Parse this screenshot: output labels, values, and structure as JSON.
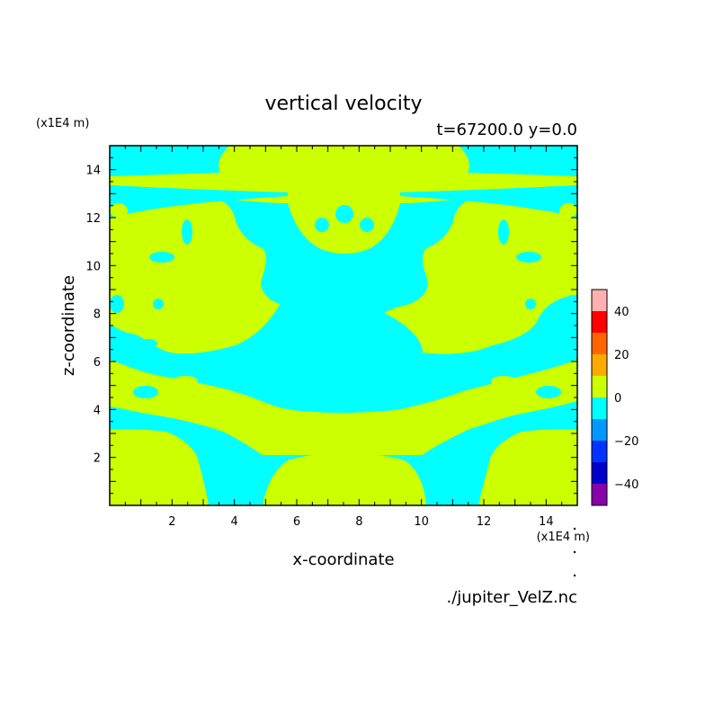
{
  "chart_data": {
    "type": "heatmap",
    "title": "vertical velocity",
    "subtitle": "t=67200.0 y=0.0",
    "xlabel": "x-coordinate",
    "ylabel": "z-coordinate",
    "x_scale_label": "(x1E4 m)",
    "y_scale_label": "(x1E4 m)",
    "source": "./jupiter_VelZ.nc",
    "xlim": [
      0,
      15
    ],
    "ylim": [
      0,
      15
    ],
    "x_ticks": [
      "2",
      "4",
      "6",
      "8",
      "10",
      "12",
      "14"
    ],
    "y_ticks": [
      "2",
      "4",
      "6",
      "8",
      "10",
      "12",
      "14"
    ],
    "colorbar": {
      "range": [
        -50,
        50
      ],
      "levels": [
        -50,
        -40,
        -30,
        -20,
        -10,
        0,
        10,
        20,
        30,
        40,
        50
      ],
      "labels": [
        "40",
        "20",
        "0",
        "−20",
        "−40"
      ],
      "colors": [
        "#8800aa",
        "#0000cc",
        "#0033ff",
        "#0099ff",
        "#00ffff",
        "#ccff00",
        "#ffaa00",
        "#ff6600",
        "#ff0000",
        "#ffb0b0"
      ]
    },
    "regions": {
      "negative": {
        "level": "-10 to 0",
        "color": "#00ffff"
      },
      "positive": {
        "level": "0 to 10",
        "color": "#ccff00"
      }
    }
  }
}
